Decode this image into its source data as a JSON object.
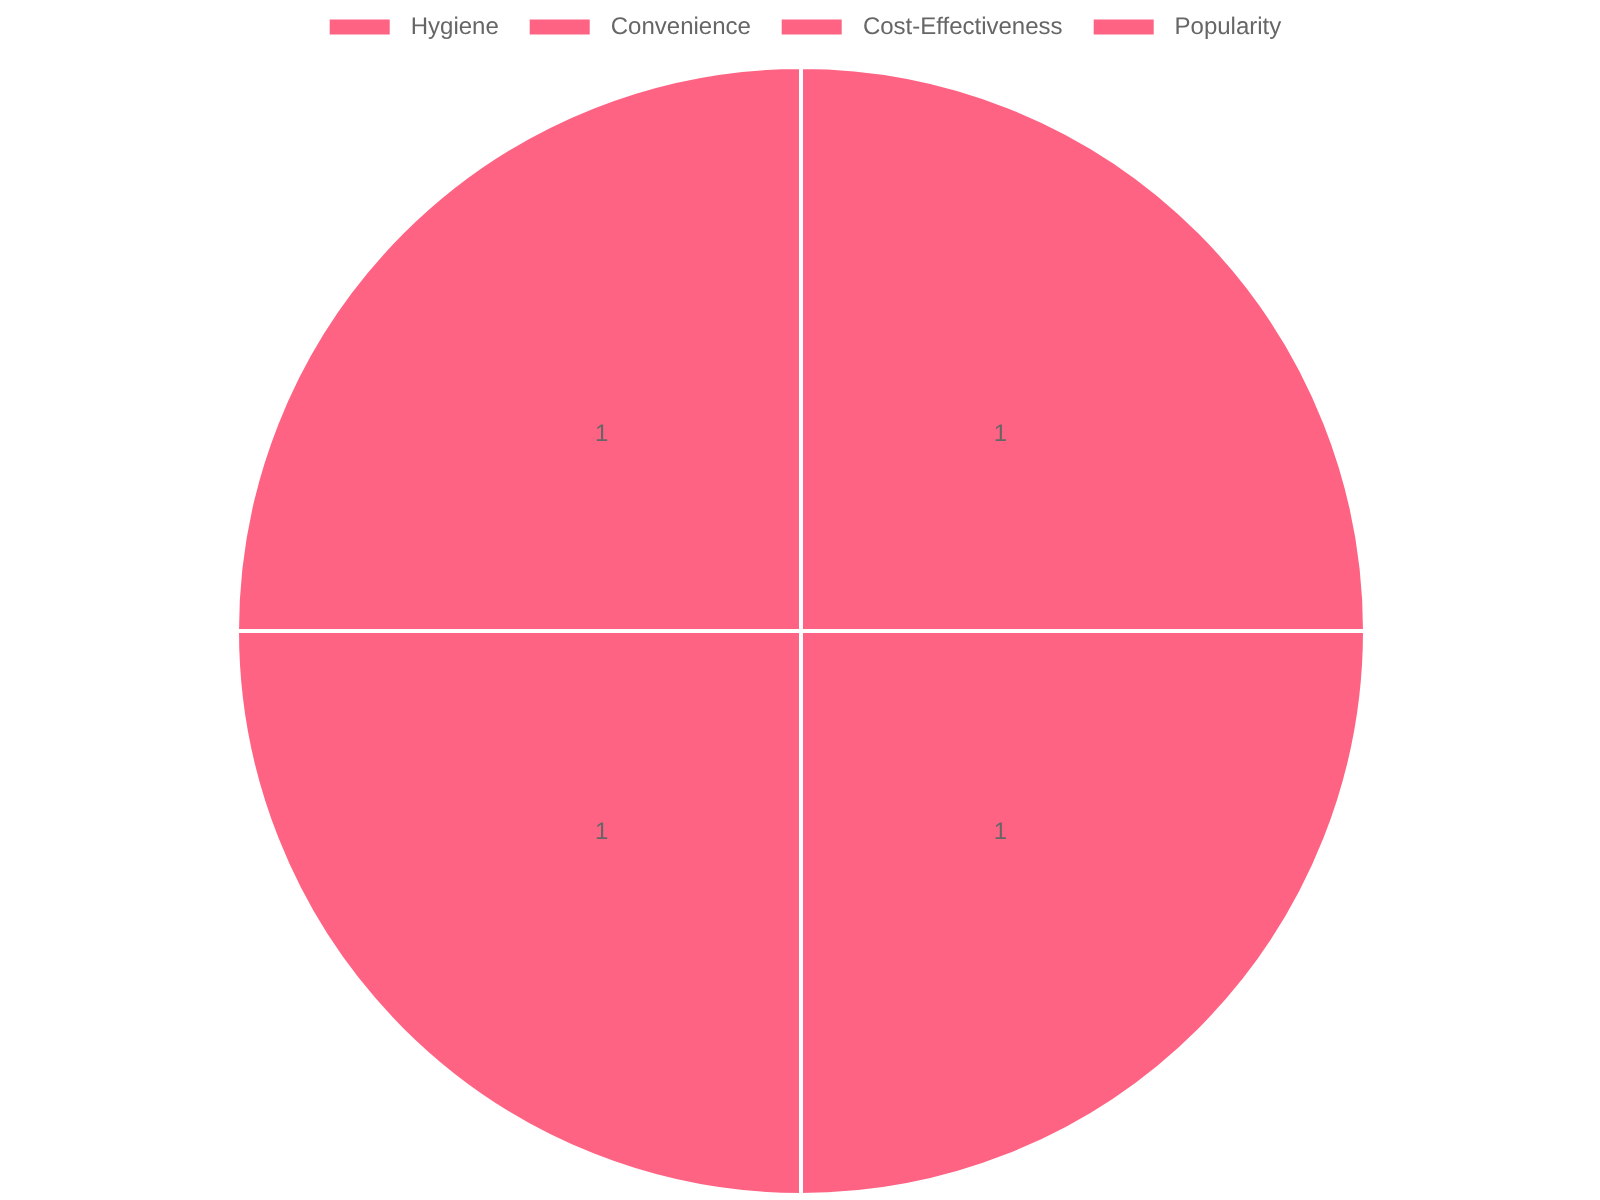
{
  "chart_data": {
    "type": "pie",
    "categories": [
      "Hygiene",
      "Convenience",
      "Cost-Effectiveness",
      "Popularity"
    ],
    "values": [
      1,
      1,
      1,
      1
    ],
    "colors": [
      "#ff6384",
      "#ff6384",
      "#ff6384",
      "#ff6384"
    ],
    "data_labels": true,
    "legend": "top"
  }
}
